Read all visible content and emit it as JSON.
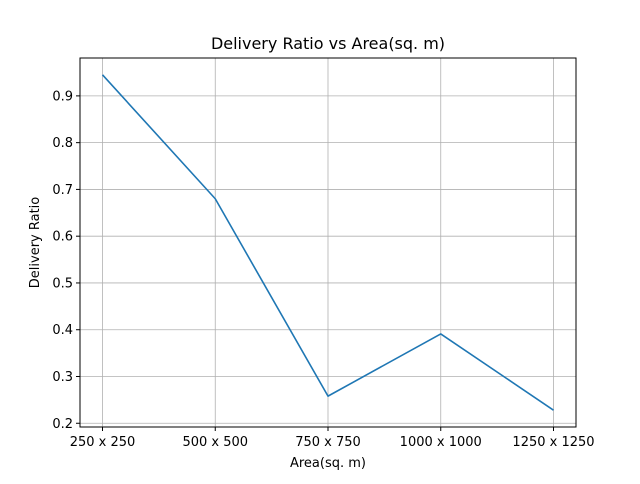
{
  "chart_data": {
    "type": "line",
    "title": "Delivery Ratio  vs Area(sq. m)",
    "xlabel": "Area(sq. m)",
    "ylabel": "Delivery Ratio",
    "categories": [
      "250 x 250",
      "500 x 500",
      "750 x 750",
      "1000 x 1000",
      "1250 x 1250"
    ],
    "series": [
      {
        "values": [
          0.945,
          0.68,
          0.258,
          0.391,
          0.228
        ],
        "color": "#1f77b4"
      }
    ],
    "yticks": [
      "0.2",
      "0.3",
      "0.4",
      "0.5",
      "0.6",
      "0.7",
      "0.8",
      "0.9"
    ],
    "ylim": [
      0.192,
      0.981
    ],
    "grid": true,
    "legend": "none"
  }
}
